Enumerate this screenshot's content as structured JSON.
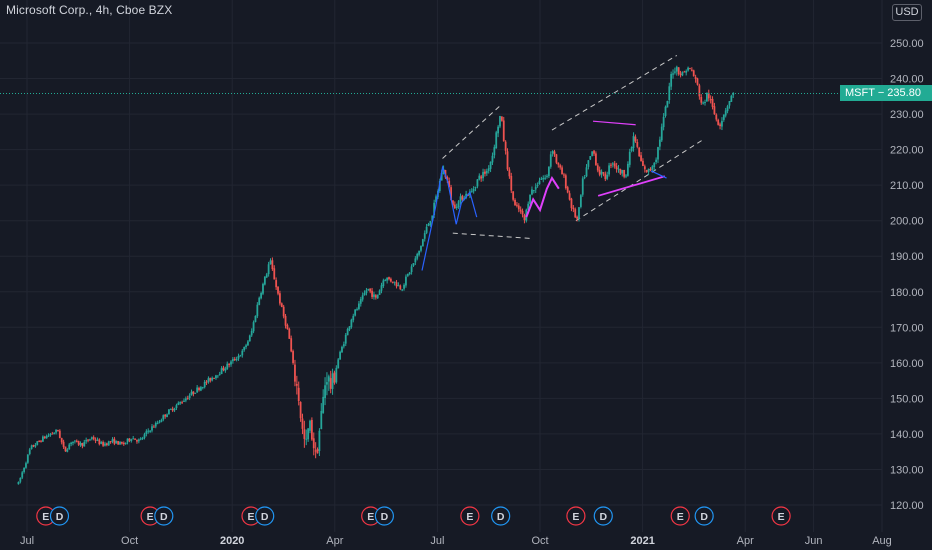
{
  "chart": {
    "title": "Microsoft Corp., 4h, Cboe BZX",
    "currency": "USD",
    "last_price_label": "MSFT",
    "last_price_value": "235.80"
  },
  "colors": {
    "background": "#161a25",
    "grid": "#222632",
    "text": "#b2b5be",
    "up": "#26a69a",
    "down": "#ef5350",
    "price_line": "#22ab94",
    "channel": "#c8c8c8",
    "pattern_blue": "#2962ff",
    "pattern_magenta": "#e040fb",
    "earnings": "#f23645",
    "dividend": "#2196f3"
  },
  "chart_data": {
    "type": "candlestick",
    "symbol": "MSFT",
    "interval": "4h",
    "exchange": "Cboe BZX",
    "title": "Microsoft Corp., 4h, Cboe BZX",
    "ylim": [
      115,
      255
    ],
    "y_ticks": [
      120,
      130,
      140,
      150,
      160,
      170,
      180,
      190,
      200,
      210,
      220,
      230,
      240,
      250
    ],
    "x_tick_labels": [
      {
        "label": "Jul",
        "t": 0.0,
        "bold": false
      },
      {
        "label": "Oct",
        "t": 3.0,
        "bold": false
      },
      {
        "label": "2020",
        "t": 6.0,
        "bold": true
      },
      {
        "label": "Apr",
        "t": 9.0,
        "bold": false
      },
      {
        "label": "Jul",
        "t": 12.0,
        "bold": false
      },
      {
        "label": "Oct",
        "t": 15.0,
        "bold": false
      },
      {
        "label": "2021",
        "t": 18.0,
        "bold": true
      },
      {
        "label": "Apr",
        "t": 21.0,
        "bold": false
      },
      {
        "label": "Jun",
        "t": 23.0,
        "bold": false
      },
      {
        "label": "Aug",
        "t": 25.0,
        "bold": false
      }
    ],
    "x_range_months": [
      -0.25,
      25.0
    ],
    "last_price": 235.8,
    "price_path": [
      [
        -0.25,
        126
      ],
      [
        0.1,
        136
      ],
      [
        0.5,
        139
      ],
      [
        0.9,
        141
      ],
      [
        1.1,
        135
      ],
      [
        1.3,
        138
      ],
      [
        1.6,
        137
      ],
      [
        1.9,
        139
      ],
      [
        2.2,
        137
      ],
      [
        2.5,
        138
      ],
      [
        2.8,
        137
      ],
      [
        3.05,
        139
      ],
      [
        3.3,
        138
      ],
      [
        3.55,
        141
      ],
      [
        3.8,
        143
      ],
      [
        4.1,
        146
      ],
      [
        4.5,
        149
      ],
      [
        4.9,
        152
      ],
      [
        5.3,
        155
      ],
      [
        5.7,
        158
      ],
      [
        5.95,
        160
      ],
      [
        6.3,
        163
      ],
      [
        6.55,
        168
      ],
      [
        6.8,
        179
      ],
      [
        7.0,
        185
      ],
      [
        7.1,
        189
      ],
      [
        7.25,
        183
      ],
      [
        7.45,
        175
      ],
      [
        7.65,
        168
      ],
      [
        7.8,
        158
      ],
      [
        7.95,
        150
      ],
      [
        8.05,
        141
      ],
      [
        8.15,
        136
      ],
      [
        8.25,
        143
      ],
      [
        8.35,
        139
      ],
      [
        8.45,
        133
      ],
      [
        8.6,
        145
      ],
      [
        8.75,
        157
      ],
      [
        8.9,
        153
      ],
      [
        9.1,
        161
      ],
      [
        9.3,
        167
      ],
      [
        9.5,
        173
      ],
      [
        9.7,
        176
      ],
      [
        9.95,
        181
      ],
      [
        10.2,
        178
      ],
      [
        10.45,
        184
      ],
      [
        10.7,
        183
      ],
      [
        10.95,
        181
      ],
      [
        11.2,
        186
      ],
      [
        11.45,
        191
      ],
      [
        11.65,
        197
      ],
      [
        11.85,
        202
      ],
      [
        12.05,
        210
      ],
      [
        12.15,
        215
      ],
      [
        12.3,
        211
      ],
      [
        12.45,
        204
      ],
      [
        12.6,
        205
      ],
      [
        12.75,
        207
      ],
      [
        13.0,
        208
      ],
      [
        13.2,
        212
      ],
      [
        13.45,
        214
      ],
      [
        13.6,
        218
      ],
      [
        13.75,
        226
      ],
      [
        13.85,
        230
      ],
      [
        13.95,
        222
      ],
      [
        14.1,
        212
      ],
      [
        14.25,
        204
      ],
      [
        14.4,
        203
      ],
      [
        14.55,
        200
      ],
      [
        14.7,
        208
      ],
      [
        14.85,
        209
      ],
      [
        15.0,
        212
      ],
      [
        15.2,
        212
      ],
      [
        15.35,
        221
      ],
      [
        15.5,
        216
      ],
      [
        15.7,
        212
      ],
      [
        15.95,
        203
      ],
      [
        16.1,
        200
      ],
      [
        16.25,
        211
      ],
      [
        16.4,
        216
      ],
      [
        16.55,
        220
      ],
      [
        16.7,
        214
      ],
      [
        16.9,
        212
      ],
      [
        17.1,
        217
      ],
      [
        17.3,
        214
      ],
      [
        17.5,
        213
      ],
      [
        17.75,
        224
      ],
      [
        17.9,
        218
      ],
      [
        18.05,
        214
      ],
      [
        18.2,
        214
      ],
      [
        18.4,
        218
      ],
      [
        18.6,
        228
      ],
      [
        18.75,
        235
      ],
      [
        18.85,
        242
      ],
      [
        19.0,
        243
      ],
      [
        19.15,
        241
      ],
      [
        19.3,
        243
      ],
      [
        19.45,
        242
      ],
      [
        19.6,
        238
      ],
      [
        19.75,
        232
      ],
      [
        19.9,
        236
      ],
      [
        20.1,
        230
      ],
      [
        20.25,
        227
      ],
      [
        20.45,
        232
      ],
      [
        20.6,
        235
      ],
      [
        20.7,
        236
      ]
    ],
    "annotations": {
      "channel_lines": [
        [
          [
            12.15,
            217.5
          ],
          [
            13.85,
            232.5
          ]
        ],
        [
          [
            12.45,
            196.5
          ],
          [
            14.75,
            195.0
          ]
        ],
        [
          [
            15.35,
            225.5
          ],
          [
            19.0,
            246.5
          ]
        ],
        [
          [
            16.05,
            200.0
          ],
          [
            19.8,
            223.0
          ]
        ]
      ],
      "blue_pattern": [
        [
          11.55,
          186
        ],
        [
          11.95,
          204
        ],
        [
          12.15,
          215
        ],
        [
          12.3,
          211
        ],
        [
          12.55,
          199
        ],
        [
          12.7,
          205
        ],
        [
          12.95,
          208
        ],
        [
          13.15,
          201
        ]
      ],
      "magenta_pattern": [
        [
          14.6,
          201
        ],
        [
          14.8,
          206
        ],
        [
          15.0,
          203
        ],
        [
          15.2,
          209
        ],
        [
          15.35,
          212
        ],
        [
          15.55,
          209
        ]
      ],
      "magenta_triangle_top": [
        [
          16.55,
          228.0
        ],
        [
          17.8,
          227.0
        ]
      ],
      "magenta_triangle_bottom": [
        [
          16.7,
          207.0
        ],
        [
          18.65,
          212.5
        ]
      ],
      "blue_small_segment": [
        [
          18.25,
          214.0
        ],
        [
          18.7,
          212.0
        ]
      ]
    },
    "events": [
      {
        "type": "E",
        "t": 0.55
      },
      {
        "type": "D",
        "t": 0.95
      },
      {
        "type": "E",
        "t": 3.6
      },
      {
        "type": "D",
        "t": 4.0
      },
      {
        "type": "E",
        "t": 6.55
      },
      {
        "type": "D",
        "t": 6.95
      },
      {
        "type": "E",
        "t": 10.05
      },
      {
        "type": "D",
        "t": 10.45
      },
      {
        "type": "E",
        "t": 12.95
      },
      {
        "type": "D",
        "t": 13.85
      },
      {
        "type": "E",
        "t": 16.05
      },
      {
        "type": "D",
        "t": 16.85
      },
      {
        "type": "E",
        "t": 19.1
      },
      {
        "type": "D",
        "t": 19.8
      },
      {
        "type": "E",
        "t": 22.05
      }
    ]
  }
}
